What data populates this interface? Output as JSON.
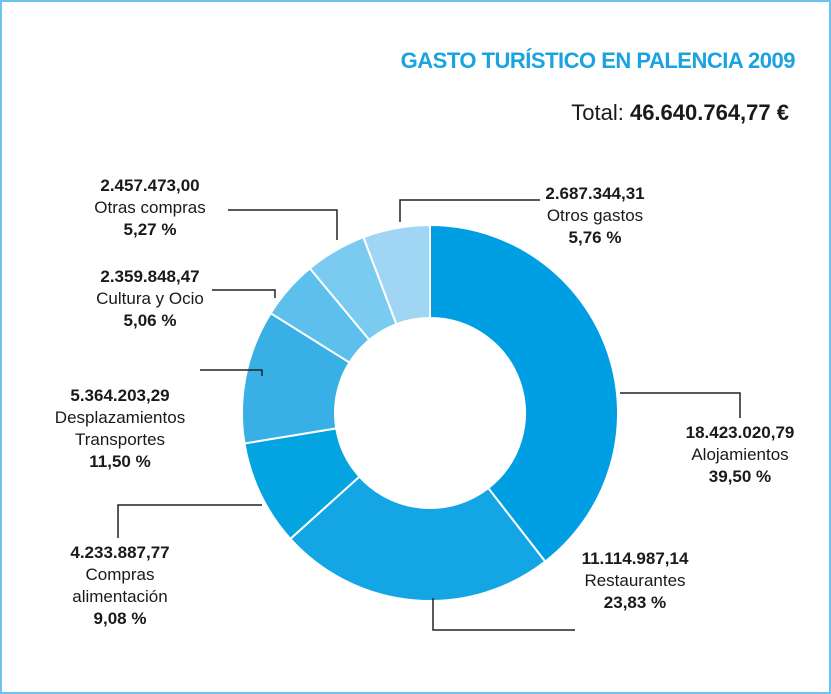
{
  "chart_data": {
    "type": "pie",
    "title": "GASTO TURÍSTICO EN PALENCIA 2009",
    "total_label": "Total:",
    "total": "46.640.764,77 €",
    "categories": [
      "Alojamientos",
      "Restaurantes",
      "Compras\nalimentación",
      "Desplazamientos\nTransportes",
      "Cultura y Ocio",
      "Otras compras",
      "Otros gastos"
    ],
    "values": [
      39.5,
      23.83,
      9.08,
      11.5,
      5.06,
      5.27,
      5.76
    ],
    "value_labels": [
      "39,50 %",
      "23,83 %",
      "9,08 %",
      "11,50 %",
      "5,06 %",
      "5,27 %",
      "5,76 %"
    ],
    "amount_labels": [
      "18.423.020,79",
      "11.114.987,14",
      "4.233.887,77",
      "5.364.203,29",
      "2.359.848,47",
      "2.457.473,00",
      "2.687.344,31"
    ],
    "colors": [
      "#009ee2",
      "#14a6e4",
      "#04a4e0",
      "#38b0e6",
      "#5dbfec",
      "#7bcaef",
      "#a0d6f3"
    ]
  }
}
